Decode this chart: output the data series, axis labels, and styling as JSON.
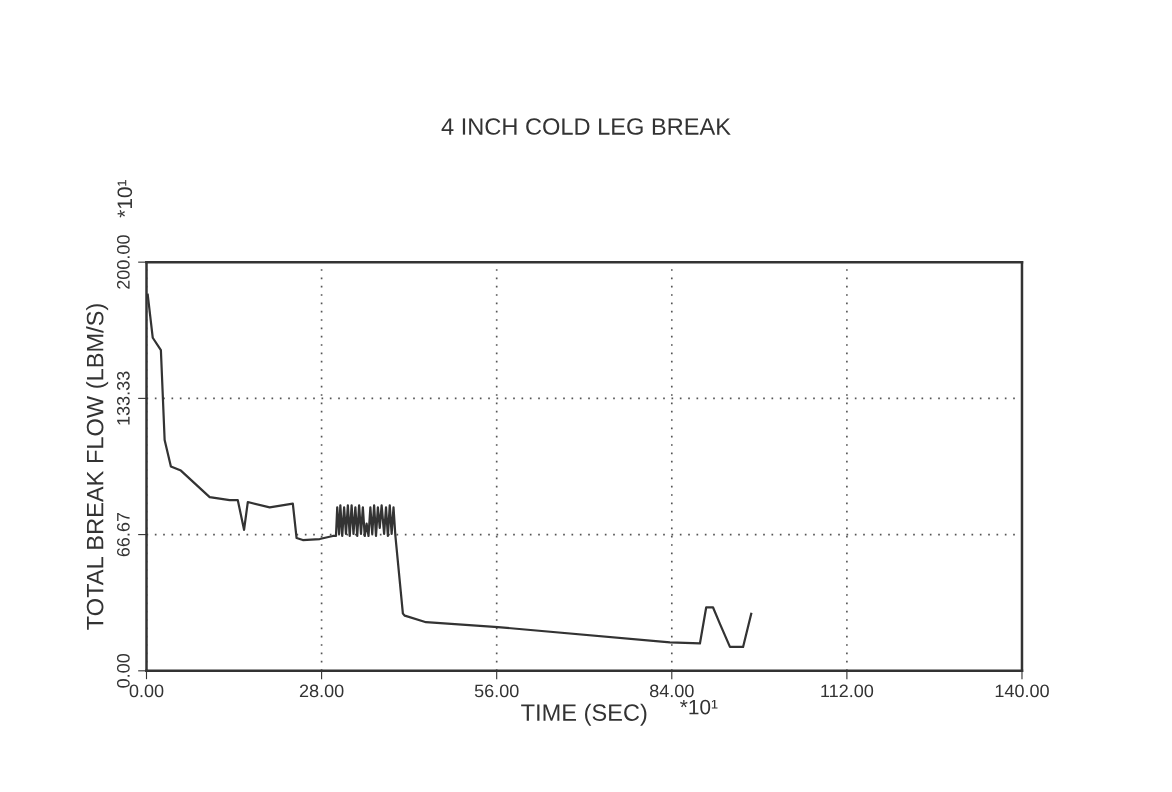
{
  "chart_data": {
    "type": "line",
    "title": "4 INCH COLD LEG BREAK",
    "xlabel": "TIME (SEC)",
    "ylabel": "TOTAL BREAK FLOW (LBM/S)",
    "annotations": [
      "*10¹",
      "*10¹"
    ],
    "series": [
      {
        "color": "#333333",
        "x": [
          0.2,
          1.0,
          2.3,
          2.9,
          3.9,
          5.5,
          10.1,
          13.3,
          14.6,
          15.6,
          16.2,
          19.7,
          23.4,
          24.0,
          25.0,
          27.7,
          29.8,
          30.3,
          30.5,
          30.8,
          31.0,
          31.3,
          31.6,
          31.9,
          32.2,
          32.5,
          32.8,
          33.1,
          33.4,
          33.7,
          34.0,
          34.3,
          34.6,
          34.9,
          35.2,
          35.5,
          35.8,
          36.1,
          36.4,
          36.7,
          37.0,
          37.3,
          37.6,
          38.0,
          38.3,
          38.6,
          38.9,
          39.2,
          39.5,
          39.8,
          41.0,
          41.3,
          44.7,
          56.2,
          83.7,
          88.5,
          89.5,
          90.6,
          91.7,
          93.3,
          95.4,
          96.7
        ],
        "values": [
          184,
          163,
          157,
          113,
          100,
          98,
          85,
          83.5,
          83.5,
          69,
          82.6,
          80,
          81.8,
          65,
          64,
          64.5,
          66,
          66,
          80,
          67,
          81,
          66,
          80,
          67,
          81,
          66,
          81,
          67,
          80,
          66,
          81,
          67,
          80,
          66,
          72,
          66,
          80,
          67,
          81,
          66,
          80,
          70,
          81,
          67,
          80,
          66,
          81,
          67,
          80,
          66,
          28,
          27,
          23.8,
          21.4,
          13.9,
          13.4,
          31,
          31,
          23,
          11.7,
          11.7,
          27.9
        ]
      }
    ],
    "xlim": [
      0,
      140
    ],
    "ylim": [
      0,
      200
    ],
    "xticks": [
      {
        "value": 0,
        "label": "0.00"
      },
      {
        "value": 28,
        "label": "28.00"
      },
      {
        "value": 56,
        "label": "56.00"
      },
      {
        "value": 84,
        "label": "84.00"
      },
      {
        "value": 112,
        "label": "112.00"
      },
      {
        "value": 140,
        "label": "140.00"
      }
    ],
    "yticks": [
      {
        "value": 0,
        "label": "0.00"
      },
      {
        "value": 66.67,
        "label": "66.67"
      },
      {
        "value": 133.33,
        "label": "133.33"
      },
      {
        "value": 200,
        "label": "200.00"
      }
    ],
    "grid": true,
    "line_style": "solid"
  }
}
